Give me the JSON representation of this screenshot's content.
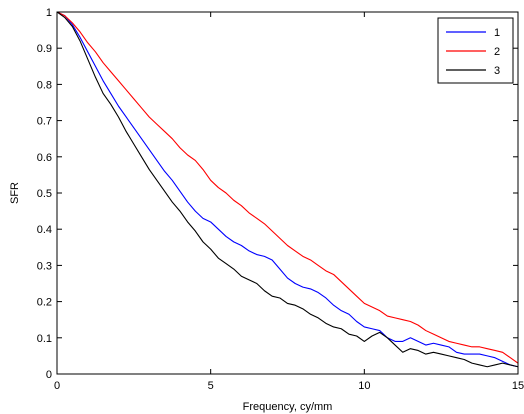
{
  "chart_data": {
    "type": "line",
    "title": "",
    "xlabel": "Frequency, cy/mm",
    "ylabel": "SFR",
    "xlim": [
      0,
      15
    ],
    "ylim": [
      0,
      1
    ],
    "grid": false,
    "legend_position": "top-right",
    "x_ticks": [
      "0",
      "5",
      "10",
      "15"
    ],
    "y_ticks": [
      "0",
      "0.1",
      "0.2",
      "0.3",
      "0.4",
      "0.5",
      "0.6",
      "0.7",
      "0.8",
      "0.9",
      "1"
    ],
    "series": [
      {
        "name": "1",
        "color": "#0000ff",
        "x": [
          0,
          0.25,
          0.5,
          0.75,
          1,
          1.25,
          1.5,
          1.75,
          2,
          2.25,
          2.5,
          2.75,
          3,
          3.25,
          3.5,
          3.75,
          4,
          4.25,
          4.5,
          4.75,
          5,
          5.25,
          5.5,
          5.75,
          6,
          6.25,
          6.5,
          6.75,
          7,
          7.25,
          7.5,
          7.75,
          8,
          8.25,
          8.5,
          8.75,
          9,
          9.25,
          9.5,
          9.75,
          10,
          10.25,
          10.5,
          10.75,
          11,
          11.25,
          11.5,
          11.75,
          12,
          12.25,
          12.5,
          12.75,
          13,
          13.25,
          13.5,
          13.75,
          14,
          14.25,
          14.5,
          14.75,
          15
        ],
        "y": [
          1.0,
          0.99,
          0.965,
          0.93,
          0.89,
          0.85,
          0.81,
          0.775,
          0.74,
          0.71,
          0.68,
          0.65,
          0.62,
          0.59,
          0.56,
          0.535,
          0.505,
          0.475,
          0.45,
          0.43,
          0.42,
          0.4,
          0.38,
          0.365,
          0.355,
          0.34,
          0.33,
          0.325,
          0.315,
          0.29,
          0.265,
          0.25,
          0.24,
          0.235,
          0.225,
          0.21,
          0.19,
          0.175,
          0.165,
          0.145,
          0.13,
          0.125,
          0.12,
          0.1,
          0.09,
          0.09,
          0.1,
          0.09,
          0.08,
          0.085,
          0.08,
          0.075,
          0.06,
          0.055,
          0.055,
          0.055,
          0.05,
          0.045,
          0.035,
          0.025,
          0.02
        ]
      },
      {
        "name": "2",
        "color": "#ff0000",
        "x": [
          0,
          0.25,
          0.5,
          0.75,
          1,
          1.25,
          1.5,
          1.75,
          2,
          2.25,
          2.5,
          2.75,
          3,
          3.25,
          3.5,
          3.75,
          4,
          4.25,
          4.5,
          4.75,
          5,
          5.25,
          5.5,
          5.75,
          6,
          6.25,
          6.5,
          6.75,
          7,
          7.25,
          7.5,
          7.75,
          8,
          8.25,
          8.5,
          8.75,
          9,
          9.25,
          9.5,
          9.75,
          10,
          10.25,
          10.5,
          10.75,
          11,
          11.25,
          11.5,
          11.75,
          12,
          12.25,
          12.5,
          12.75,
          13,
          13.25,
          13.5,
          13.75,
          14,
          14.25,
          14.5,
          14.75,
          15
        ],
        "y": [
          1.0,
          0.99,
          0.97,
          0.945,
          0.915,
          0.89,
          0.86,
          0.835,
          0.81,
          0.785,
          0.76,
          0.735,
          0.71,
          0.69,
          0.67,
          0.65,
          0.625,
          0.605,
          0.59,
          0.565,
          0.535,
          0.515,
          0.5,
          0.48,
          0.465,
          0.445,
          0.43,
          0.415,
          0.395,
          0.375,
          0.355,
          0.34,
          0.325,
          0.315,
          0.3,
          0.285,
          0.275,
          0.255,
          0.235,
          0.215,
          0.195,
          0.185,
          0.175,
          0.16,
          0.155,
          0.15,
          0.145,
          0.135,
          0.12,
          0.11,
          0.1,
          0.09,
          0.085,
          0.08,
          0.075,
          0.075,
          0.07,
          0.065,
          0.06,
          0.045,
          0.03
        ]
      },
      {
        "name": "3",
        "color": "#000000",
        "x": [
          0,
          0.25,
          0.5,
          0.75,
          1,
          1.25,
          1.5,
          1.75,
          2,
          2.25,
          2.5,
          2.75,
          3,
          3.25,
          3.5,
          3.75,
          4,
          4.25,
          4.5,
          4.75,
          5,
          5.25,
          5.5,
          5.75,
          6,
          6.25,
          6.5,
          6.75,
          7,
          7.25,
          7.5,
          7.75,
          8,
          8.25,
          8.5,
          8.75,
          9,
          9.25,
          9.5,
          9.75,
          10,
          10.25,
          10.5,
          10.75,
          11,
          11.25,
          11.5,
          11.75,
          12,
          12.25,
          12.5,
          12.75,
          13,
          13.25,
          13.5,
          13.75,
          14,
          14.25,
          14.5,
          14.75,
          15
        ],
        "y": [
          1.0,
          0.985,
          0.96,
          0.92,
          0.87,
          0.82,
          0.775,
          0.745,
          0.71,
          0.67,
          0.635,
          0.6,
          0.565,
          0.535,
          0.505,
          0.475,
          0.45,
          0.42,
          0.395,
          0.365,
          0.345,
          0.32,
          0.305,
          0.29,
          0.27,
          0.26,
          0.25,
          0.23,
          0.215,
          0.21,
          0.195,
          0.19,
          0.18,
          0.165,
          0.155,
          0.14,
          0.13,
          0.125,
          0.11,
          0.105,
          0.09,
          0.105,
          0.115,
          0.1,
          0.08,
          0.06,
          0.07,
          0.065,
          0.055,
          0.06,
          0.055,
          0.05,
          0.045,
          0.04,
          0.03,
          0.025,
          0.02,
          0.025,
          0.03,
          0.025,
          0.02
        ]
      }
    ]
  }
}
